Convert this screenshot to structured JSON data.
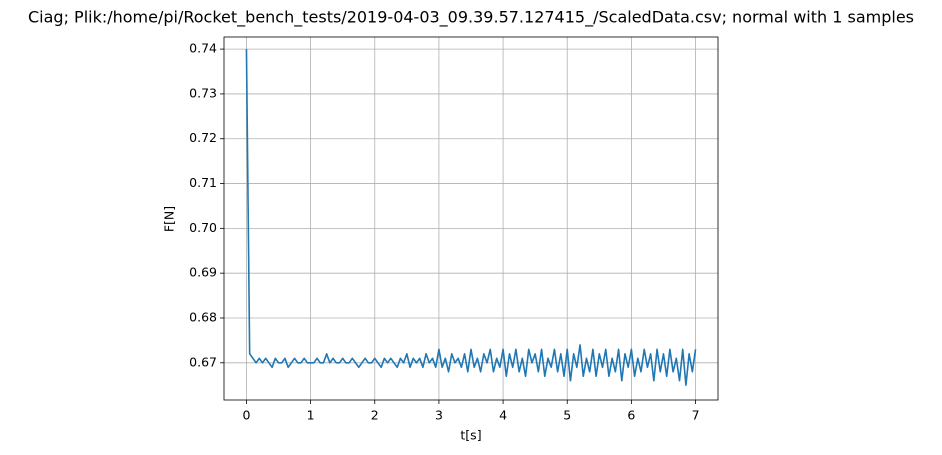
{
  "chart_data": {
    "type": "line",
    "title": "Ciag; Plik:/home/pi/Rocket_bench_tests/2019-04-03_09.39.57.127415_/ScaledData.csv; normal with 1 samples",
    "xlabel": "t[s]",
    "ylabel": "F[N]",
    "color": "#1f77b4",
    "grid": true,
    "xlim": [
      -0.35,
      7.35
    ],
    "ylim": [
      0.6617,
      0.7427
    ],
    "xticks": [
      0,
      1,
      2,
      3,
      4,
      5,
      6,
      7
    ],
    "yticks": [
      0.67,
      0.68,
      0.69,
      {
        "value": 0.7,
        "label": "0.70"
      },
      0.71,
      0.72,
      0.73,
      0.74
    ],
    "x": [
      0,
      0.05,
      0.1,
      0.15,
      0.2,
      0.25,
      0.3,
      0.35,
      0.4,
      0.45,
      0.5,
      0.55,
      0.6,
      0.65,
      0.7,
      0.75,
      0.8,
      0.85,
      0.9,
      0.95,
      1,
      1.05,
      1.1,
      1.15,
      1.2,
      1.25,
      1.3,
      1.35,
      1.4,
      1.45,
      1.5,
      1.55,
      1.6,
      1.65,
      1.7,
      1.75,
      1.8,
      1.85,
      1.9,
      1.95,
      2,
      2.05,
      2.1,
      2.15,
      2.2,
      2.25,
      2.3,
      2.35,
      2.4,
      2.45,
      2.5,
      2.55,
      2.6,
      2.65,
      2.7,
      2.75,
      2.8,
      2.85,
      2.9,
      2.95,
      3,
      3.05,
      3.1,
      3.15,
      3.2,
      3.25,
      3.3,
      3.35,
      3.4,
      3.45,
      3.5,
      3.55,
      3.6,
      3.65,
      3.7,
      3.75,
      3.8,
      3.85,
      3.9,
      3.95,
      4,
      4.05,
      4.1,
      4.15,
      4.2,
      4.25,
      4.3,
      4.35,
      4.4,
      4.45,
      4.5,
      4.55,
      4.6,
      4.65,
      4.7,
      4.75,
      4.8,
      4.85,
      4.9,
      4.95,
      5,
      5.05,
      5.1,
      5.15,
      5.2,
      5.25,
      5.3,
      5.35,
      5.4,
      5.45,
      5.5,
      5.55,
      5.6,
      5.65,
      5.7,
      5.75,
      5.8,
      5.85,
      5.9,
      5.95,
      6,
      6.05,
      6.1,
      6.15,
      6.2,
      6.25,
      6.3,
      6.35,
      6.4,
      6.45,
      6.5,
      6.55,
      6.6,
      6.65,
      6.7,
      6.75,
      6.8,
      6.85,
      6.9,
      6.95,
      7
    ],
    "values": [
      0.74,
      0.672,
      0.671,
      0.67,
      0.671,
      0.67,
      0.671,
      0.67,
      0.669,
      0.671,
      0.67,
      0.67,
      0.671,
      0.669,
      0.67,
      0.671,
      0.67,
      0.67,
      0.671,
      0.67,
      0.67,
      0.67,
      0.671,
      0.67,
      0.67,
      0.672,
      0.67,
      0.671,
      0.67,
      0.67,
      0.671,
      0.67,
      0.67,
      0.671,
      0.67,
      0.669,
      0.67,
      0.671,
      0.67,
      0.67,
      0.671,
      0.67,
      0.669,
      0.671,
      0.67,
      0.671,
      0.67,
      0.669,
      0.671,
      0.67,
      0.672,
      0.669,
      0.671,
      0.67,
      0.671,
      0.669,
      0.672,
      0.67,
      0.671,
      0.669,
      0.673,
      0.669,
      0.671,
      0.668,
      0.672,
      0.67,
      0.671,
      0.669,
      0.672,
      0.668,
      0.673,
      0.669,
      0.671,
      0.668,
      0.672,
      0.67,
      0.673,
      0.668,
      0.671,
      0.669,
      0.673,
      0.667,
      0.672,
      0.669,
      0.673,
      0.668,
      0.671,
      0.667,
      0.673,
      0.67,
      0.672,
      0.668,
      0.673,
      0.667,
      0.671,
      0.669,
      0.673,
      0.668,
      0.672,
      0.667,
      0.673,
      0.666,
      0.672,
      0.669,
      0.674,
      0.667,
      0.671,
      0.668,
      0.673,
      0.667,
      0.672,
      0.669,
      0.673,
      0.667,
      0.671,
      0.668,
      0.673,
      0.666,
      0.672,
      0.669,
      0.673,
      0.667,
      0.671,
      0.668,
      0.673,
      0.669,
      0.672,
      0.666,
      0.673,
      0.668,
      0.672,
      0.667,
      0.673,
      0.668,
      0.671,
      0.666,
      0.673,
      0.665,
      0.672,
      0.668,
      0.673
    ]
  }
}
